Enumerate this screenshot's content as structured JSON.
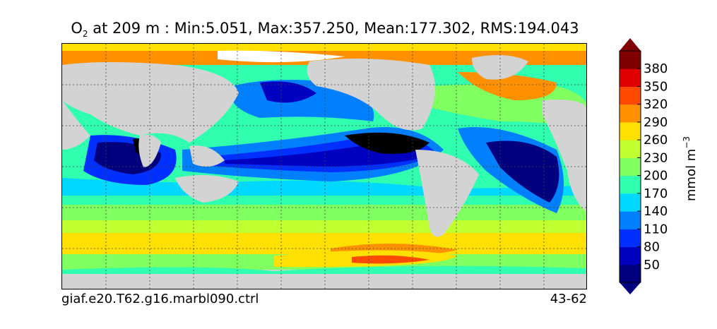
{
  "title": {
    "variable": "O",
    "variable_subscript": "2",
    "rest": " at 209 m : Min:5.051, Max:357.250, Mean:177.302, RMS:194.043"
  },
  "footer": {
    "case_name": "giaf.e20.T62.g16.marbl090.ctrl",
    "years": "43-62"
  },
  "colorbar": {
    "units": "mmol m",
    "units_superscript": "−3",
    "tick_labels": [
      "50",
      "80",
      "110",
      "140",
      "170",
      "200",
      "230",
      "260",
      "290",
      "320",
      "350",
      "380"
    ],
    "colors": [
      "#00007f",
      "#0000c0",
      "#0030ff",
      "#0080ff",
      "#00d8ff",
      "#30ffb0",
      "#80ff60",
      "#c0ff30",
      "#ffe000",
      "#ff9000",
      "#ff4a00",
      "#e00000",
      "#800000"
    ],
    "under_color": "#000000",
    "over_color": "#000000",
    "extend": "both"
  },
  "colors": {
    "land": "#d3d3d3",
    "sea_ice_missing": "#ffffff"
  }
}
